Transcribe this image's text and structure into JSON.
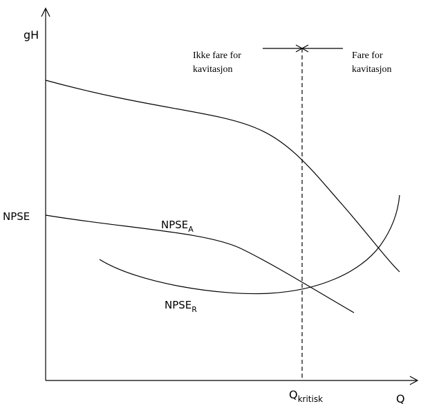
{
  "axes": {
    "y_label": "gH",
    "x_label": "Q",
    "y_tick_label": "NPSE",
    "x_tick_label": {
      "main": "Q",
      "subscript": "kritisk"
    }
  },
  "annotations": {
    "left_line1": "Ikke fare for",
    "left_line2": "kavitasjon",
    "right_line1": "Fare for",
    "right_line2": "kavitasjon"
  },
  "curves": {
    "npse_a": {
      "main": "NPSE",
      "subscript": "A"
    },
    "npse_r": {
      "main": "NPSE",
      "subscript": "R"
    }
  },
  "colors": {
    "line": "#000000",
    "background": "#ffffff"
  }
}
